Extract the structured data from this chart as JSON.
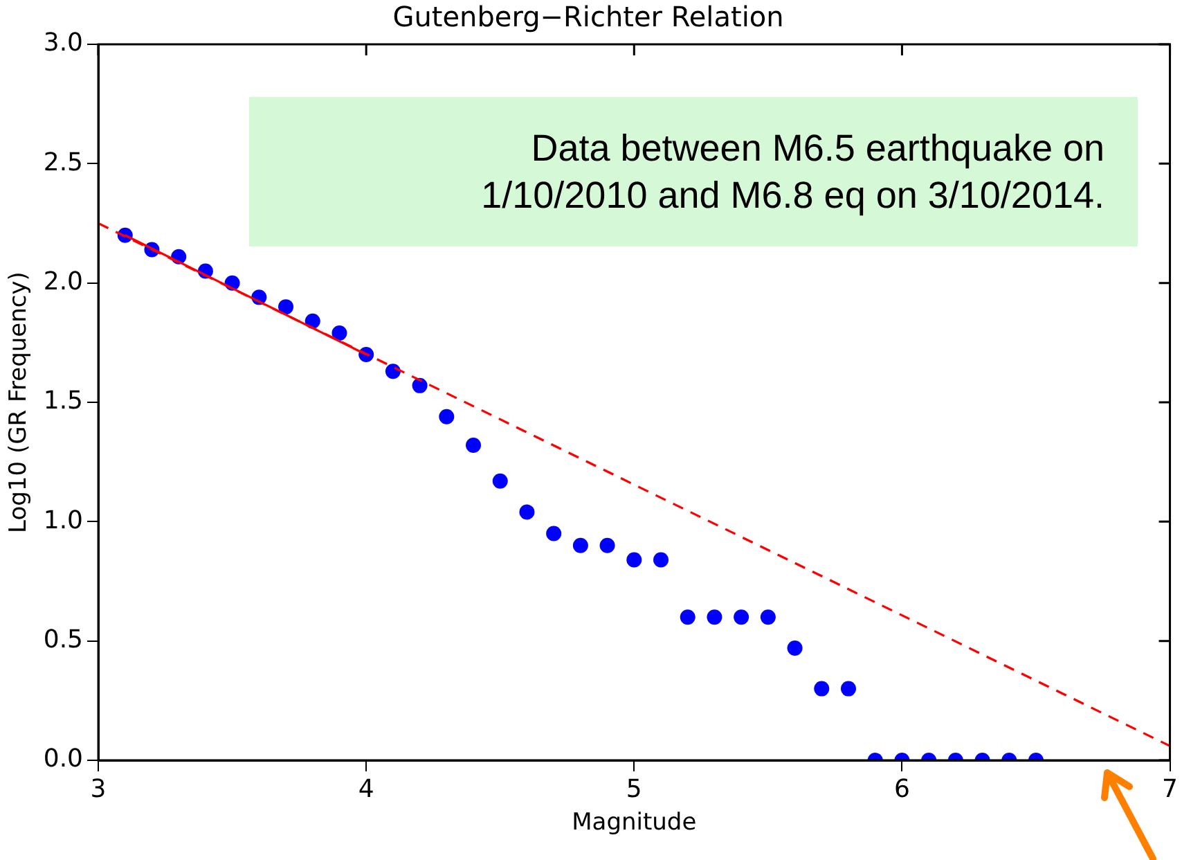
{
  "chart_data": {
    "type": "scatter",
    "title": "Gutenberg−Richter Relation",
    "xlabel": "Magnitude",
    "ylabel": "Log10 (GR Frequency)",
    "annotations": [
      "Data between M6.5 earthquake on 1/10/2010 and M6.8 eq on 3/10/2014."
    ],
    "xlim": [
      3,
      7
    ],
    "xticks": [
      3,
      4,
      5,
      6,
      7
    ],
    "ylim": [
      0,
      3
    ],
    "yticks": [
      {
        "value": 0,
        "label": "0.0"
      },
      {
        "value": 0.5,
        "label": "0.5"
      },
      {
        "value": 1,
        "label": "1.0"
      },
      {
        "value": 1.5,
        "label": "1.5"
      },
      {
        "value": 2,
        "label": "2.0"
      },
      {
        "value": 2.5,
        "label": "2.5"
      },
      {
        "value": 3,
        "label": "3.0"
      }
    ],
    "grid": false,
    "legend": false,
    "series": [
      {
        "type": "line",
        "line_style": "dashed",
        "marker": "none",
        "color": "#ff0000",
        "x": [
          3,
          7
        ],
        "values": [
          2.25,
          0.06
        ]
      },
      {
        "type": "line",
        "line_style": "solid",
        "marker": "none",
        "color": "#ff0000",
        "x": [
          3.1,
          4.0
        ],
        "values": [
          2.2,
          1.7
        ]
      },
      {
        "type": "scatter",
        "marker": "circle",
        "color": "#0000ff",
        "x": [
          3.1,
          3.2,
          3.3,
          3.4,
          3.5,
          3.6,
          3.7,
          3.8,
          3.9,
          4.0,
          4.1,
          4.2,
          4.3,
          4.4,
          4.5,
          4.6,
          4.7,
          4.8,
          4.9,
          5.0,
          5.1,
          5.2,
          5.3,
          5.4,
          5.5,
          5.6,
          5.7,
          5.8,
          5.9,
          6.0,
          6.1,
          6.2,
          6.3,
          6.4,
          6.5
        ],
        "values": [
          2.2,
          2.14,
          2.11,
          2.05,
          2.0,
          1.94,
          1.9,
          1.84,
          1.79,
          1.7,
          1.63,
          1.57,
          1.44,
          1.32,
          1.17,
          1.04,
          0.95,
          0.9,
          0.9,
          0.84,
          0.84,
          0.6,
          0.6,
          0.6,
          0.6,
          0.47,
          0.3,
          0.3,
          0,
          0,
          0,
          0,
          0,
          0,
          0
        ]
      }
    ]
  }
}
